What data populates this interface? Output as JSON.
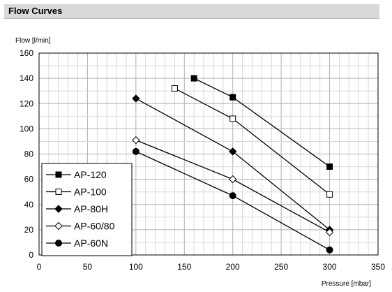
{
  "header": {
    "title": "Flow Curves"
  },
  "chart_data": {
    "type": "line",
    "ylabel": "Flow [l/min]",
    "xlabel": "Pressure [mbar]",
    "xlim": [
      0,
      350
    ],
    "ylim": [
      0,
      160
    ],
    "x_ticks": [
      "0",
      "50",
      "100",
      "150",
      "200",
      "250",
      "300",
      "350"
    ],
    "y_ticks": [
      "0",
      "20",
      "40",
      "60",
      "80",
      "100",
      "120",
      "140",
      "160"
    ],
    "grid": true,
    "legend_position": "bottom-left",
    "series": [
      {
        "name": "AP-120",
        "marker": "filled-square",
        "x": [
          160,
          200,
          300
        ],
        "y": [
          140,
          125,
          70
        ]
      },
      {
        "name": "AP-100",
        "marker": "open-square",
        "x": [
          140,
          200,
          300
        ],
        "y": [
          132,
          108,
          48
        ]
      },
      {
        "name": "AP-80H",
        "marker": "filled-diamond",
        "x": [
          100,
          200,
          300
        ],
        "y": [
          124,
          82,
          20
        ]
      },
      {
        "name": "AP-60/80",
        "marker": "open-diamond",
        "x": [
          100,
          200,
          300
        ],
        "y": [
          91,
          60,
          18
        ]
      },
      {
        "name": "AP-60N",
        "marker": "filled-circle",
        "x": [
          100,
          200,
          300
        ],
        "y": [
          82,
          47,
          4
        ]
      }
    ]
  }
}
